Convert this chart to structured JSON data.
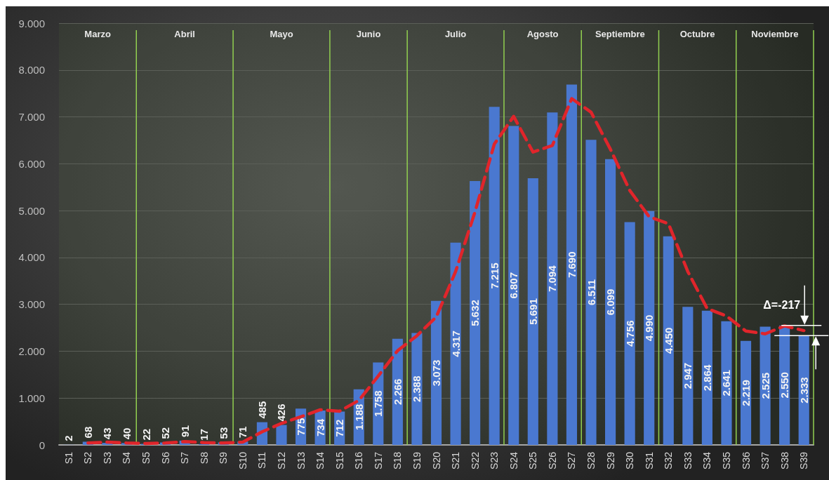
{
  "chart_data": {
    "type": "bar",
    "categories": [
      "S1",
      "S2",
      "S3",
      "S4",
      "S5",
      "S6",
      "S7",
      "S8",
      "S9",
      "S10",
      "S11",
      "S12",
      "S13",
      "S14",
      "S15",
      "S16",
      "S17",
      "S18",
      "S19",
      "S20",
      "S21",
      "S22",
      "S23",
      "S24",
      "S25",
      "S26",
      "S27",
      "S28",
      "S29",
      "S30",
      "S31",
      "S32",
      "S33",
      "S34",
      "S35",
      "S36",
      "S37",
      "S38",
      "S39"
    ],
    "series": [
      {
        "color": "#4a78d0",
        "values": [
          2,
          68,
          43,
          40,
          22,
          52,
          91,
          17,
          53,
          71,
          485,
          426,
          775,
          734,
          712,
          1188,
          1758,
          2266,
          2388,
          3073,
          4317,
          5632,
          7215,
          6807,
          5691,
          7094,
          7690,
          6511,
          6099,
          4756,
          4990,
          4450,
          2947,
          2864,
          2641,
          2219,
          2525,
          2550,
          2333
        ],
        "value_labels": [
          "2",
          "68",
          "43",
          "40",
          "22",
          "52",
          "91",
          "17",
          "53",
          "71",
          "485",
          "426",
          "775",
          "734",
          "712",
          "1.188",
          "1.758",
          "2.266",
          "2.388",
          "3.073",
          "4.317",
          "5.632",
          "7.215",
          "6.807",
          "5.691",
          "7.094",
          "7.690",
          "6.511",
          "6.099",
          "4.756",
          "4.990",
          "4.450",
          "2.947",
          "2.864",
          "2.641",
          "2.219",
          "2.525",
          "2.550",
          "2.333"
        ]
      },
      {
        "type": "line",
        "color": "#e0252b",
        "line_style": "dashed",
        "marker": "none",
        "values": [
          null,
          40,
          60,
          40,
          30,
          40,
          70,
          50,
          40,
          60,
          280,
          460,
          600,
          750,
          720,
          950,
          1470,
          2010,
          2330,
          2730,
          3700,
          4970,
          6420,
          7010,
          6250,
          6390,
          7390,
          7100,
          6310,
          5430,
          4870,
          4720,
          3700,
          2910,
          2750,
          2430,
          2370,
          2540,
          2440
        ]
      }
    ],
    "ylim": [
      0,
      9000
    ],
    "yticks": [
      0,
      {
        "value": 1000,
        "label": "1.000"
      },
      {
        "value": 2000,
        "label": "2.000"
      },
      {
        "value": 3000,
        "label": "3.000"
      },
      {
        "value": 4000,
        "label": "4.000"
      },
      {
        "value": 5000,
        "label": "5.000"
      },
      {
        "value": 6000,
        "label": "6.000"
      },
      {
        "value": 7000,
        "label": "7.000"
      },
      {
        "value": 8000,
        "label": "8.000"
      },
      {
        "value": 9000,
        "label": "9.000"
      }
    ],
    "grid": "y",
    "bands": [
      {
        "axis": "x",
        "from": "S1",
        "to": "S4",
        "label": "Marzo",
        "color": "#92d050"
      },
      {
        "axis": "x",
        "from": "S5",
        "to": "S9",
        "label": "Abril",
        "color": "#92d050"
      },
      {
        "axis": "x",
        "from": "S10",
        "to": "S14",
        "label": "Mayo",
        "color": "#92d050"
      },
      {
        "axis": "x",
        "from": "S15",
        "to": "S18",
        "label": "Junio",
        "color": "#92d050"
      },
      {
        "axis": "x",
        "from": "S19",
        "to": "S23",
        "label": "Julio",
        "color": "#92d050"
      },
      {
        "axis": "x",
        "from": "S24",
        "to": "S27",
        "label": "Agosto",
        "color": "#92d050"
      },
      {
        "axis": "x",
        "from": "S28",
        "to": "S31",
        "label": "Septiembre",
        "color": "#92d050"
      },
      {
        "axis": "x",
        "from": "S32",
        "to": "S35",
        "label": "Octubre",
        "color": "#92d050"
      },
      {
        "axis": "x",
        "from": "S36",
        "to": "S39",
        "label": "Noviembre",
        "color": "#92d050"
      }
    ],
    "annotations": [
      {
        "text": "Δ=-217",
        "x": "S39",
        "y": 2550
      }
    ]
  }
}
